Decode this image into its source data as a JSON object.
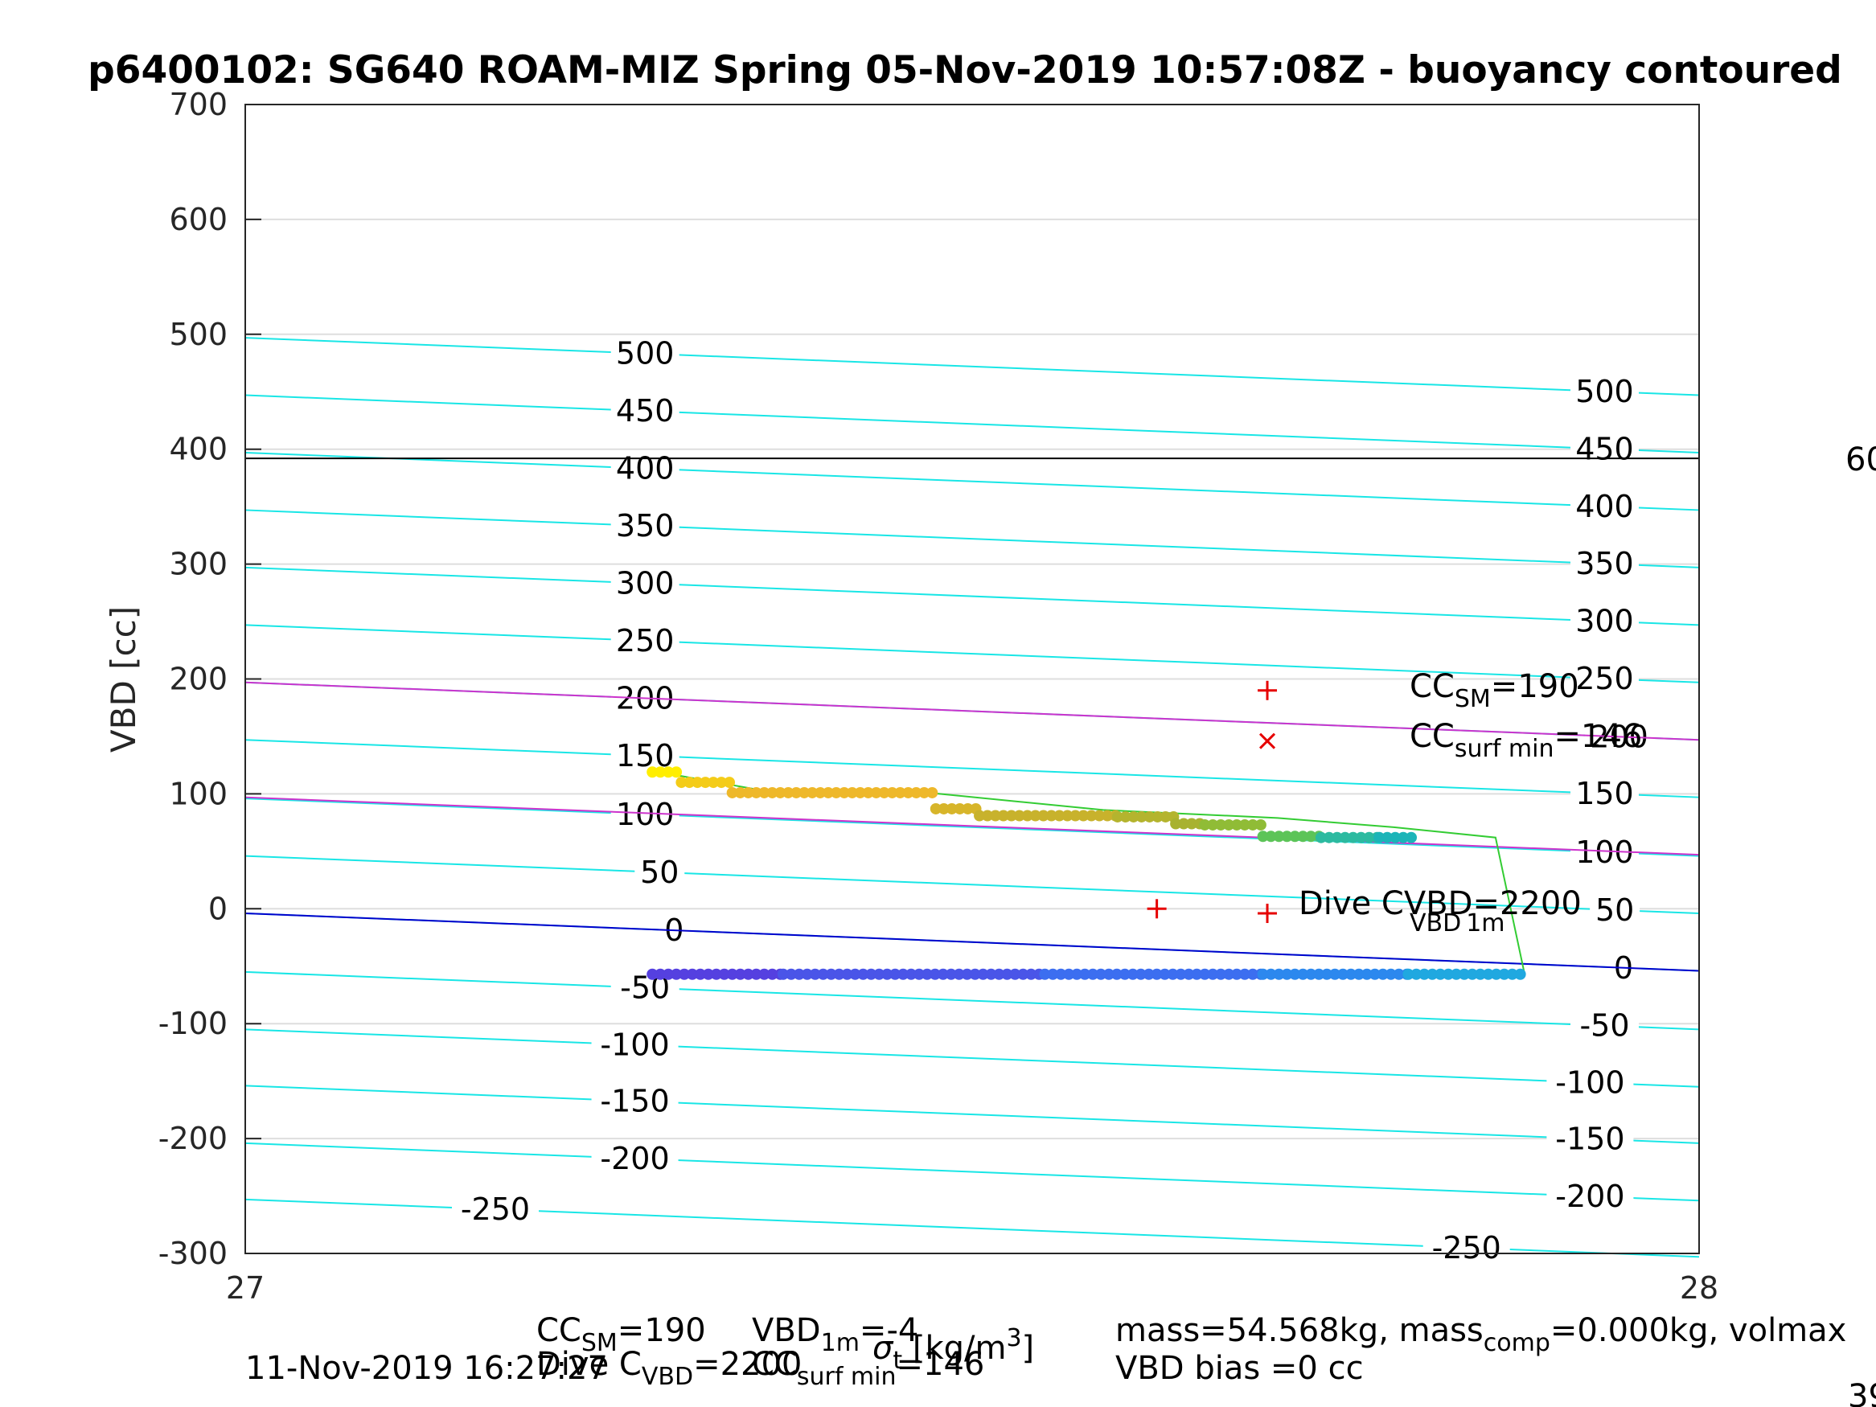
{
  "chart_data": {
    "type": "scatter",
    "title": "p6400102: SG640 ROAM-MIZ Spring 05-Nov-2019 10:57:08Z - buoyancy contoured",
    "ylabel": "VBD [cc]",
    "xlabel_parts": [
      "σ",
      "t",
      " [kg/m",
      "3",
      "]"
    ],
    "xlim": [
      27,
      28
    ],
    "ylim": [
      -300,
      700
    ],
    "x_ticks": [
      "27",
      "28"
    ],
    "y_ticks": [
      "-300",
      "-200",
      "-100",
      "0",
      "100",
      "200",
      "300",
      "400",
      "500",
      "600",
      "700"
    ],
    "grid": true,
    "contours": {
      "levels": [
        -250,
        -200,
        -150,
        -100,
        -50,
        0,
        50,
        100,
        150,
        200,
        250,
        300,
        350,
        400,
        450,
        500
      ],
      "y_at_left": [
        -253,
        -204,
        -154,
        -105,
        -55,
        -4,
        46,
        96,
        147,
        197,
        247,
        297,
        347,
        397,
        447,
        497
      ],
      "slope_per_unit_x": -50,
      "left_labels": [
        {
          "text": "500",
          "x": 27.275,
          "level": 500
        },
        {
          "text": "450",
          "x": 27.275,
          "level": 450
        },
        {
          "text": "400",
          "x": 27.275,
          "level": 400
        },
        {
          "text": "350",
          "x": 27.275,
          "level": 350
        },
        {
          "text": "300",
          "x": 27.275,
          "level": 300
        },
        {
          "text": "250",
          "x": 27.275,
          "level": 250
        },
        {
          "text": "200",
          "x": 27.275,
          "level": 200
        },
        {
          "text": "150",
          "x": 27.275,
          "level": 150
        },
        {
          "text": "100",
          "x": 27.275,
          "level": 100
        },
        {
          "text": "50",
          "x": 27.285,
          "level": 50
        },
        {
          "text": "0",
          "x": 27.295,
          "level": 0
        },
        {
          "text": "-50",
          "x": 27.275,
          "level": -50
        },
        {
          "text": "-100",
          "x": 27.268,
          "level": -100
        },
        {
          "text": "-150",
          "x": 27.268,
          "level": -150
        },
        {
          "text": "-200",
          "x": 27.268,
          "level": -200
        },
        {
          "text": "-250",
          "x": 27.172,
          "level": -250
        }
      ],
      "right_labels": [
        {
          "text": "500",
          "x": 27.935,
          "level": 500
        },
        {
          "text": "450",
          "x": 27.935,
          "level": 450
        },
        {
          "text": "400",
          "x": 27.935,
          "level": 400
        },
        {
          "text": "350",
          "x": 27.935,
          "level": 350
        },
        {
          "text": "300",
          "x": 27.935,
          "level": 300
        },
        {
          "text": "250",
          "x": 27.935,
          "level": 250
        },
        {
          "text": "200",
          "x": 27.945,
          "level": 200
        },
        {
          "text": "150",
          "x": 27.935,
          "level": 150
        },
        {
          "text": "100",
          "x": 27.935,
          "level": 100
        },
        {
          "text": "50",
          "x": 27.942,
          "level": 50
        },
        {
          "text": "0",
          "x": 27.948,
          "level": 0
        },
        {
          "text": "-50",
          "x": 27.935,
          "level": -50
        },
        {
          "text": "-100",
          "x": 27.925,
          "level": -100
        },
        {
          "text": "-150",
          "x": 27.925,
          "level": -150
        },
        {
          "text": "-200",
          "x": 27.925,
          "level": -200
        },
        {
          "text": "-250",
          "x": 27.84,
          "level": -250
        }
      ]
    },
    "reference_lines": [
      {
        "name": "VBD_1m",
        "color": "#0000cc",
        "y0": -4,
        "y1": -54
      },
      {
        "name": "CC_surf_min",
        "color": "#cc33cc",
        "y0": 97,
        "y1": 47
      },
      {
        "name": "CC_SM",
        "color": "#cc33cc",
        "y0": 197,
        "y1": 147
      },
      {
        "name": "volmax",
        "color": "#000000",
        "y0": 392,
        "y1": 392
      }
    ],
    "dive_segment": {
      "color": "#33cc33",
      "points": [
        [
          27.28,
          120
        ],
        [
          27.36,
          102
        ],
        [
          27.47,
          101
        ],
        [
          27.59,
          86
        ],
        [
          27.71,
          79
        ],
        [
          27.79,
          71
        ],
        [
          27.86,
          62
        ],
        [
          27.88,
          -57
        ],
        [
          27.28,
          -57
        ]
      ]
    },
    "climb_points": [
      {
        "from": 27.28,
        "to": 27.3,
        "y": 119,
        "color": "#ffee00"
      },
      {
        "from": 27.3,
        "to": 27.335,
        "y": 110,
        "color": "#f4cc18"
      },
      {
        "from": 27.335,
        "to": 27.475,
        "y": 101,
        "color": "#eeb82a"
      },
      {
        "from": 27.475,
        "to": 27.505,
        "y": 87,
        "color": "#d7b52a"
      },
      {
        "from": 27.505,
        "to": 27.6,
        "y": 81,
        "color": "#c8b22c"
      },
      {
        "from": 27.6,
        "to": 27.64,
        "y": 80,
        "color": "#b4b42e"
      },
      {
        "from": 27.64,
        "to": 27.66,
        "y": 74,
        "color": "#a8b230"
      },
      {
        "from": 27.66,
        "to": 27.7,
        "y": 73,
        "color": "#90bc36"
      },
      {
        "from": 27.7,
        "to": 27.74,
        "y": 63,
        "color": "#5cc458"
      },
      {
        "from": 27.74,
        "to": 27.78,
        "y": 62,
        "color": "#2cbaa0"
      },
      {
        "from": 27.78,
        "to": 27.805,
        "y": 62,
        "color": "#1cb4b8"
      }
    ],
    "dive_points": [
      {
        "from": 27.28,
        "to": 27.37,
        "y": -57,
        "color": "#5540e0"
      },
      {
        "from": 27.37,
        "to": 27.55,
        "y": -57,
        "color": "#4a55e8"
      },
      {
        "from": 27.55,
        "to": 27.7,
        "y": -57,
        "color": "#3c6ef0"
      },
      {
        "from": 27.7,
        "to": 27.8,
        "y": -57,
        "color": "#2c88ee"
      },
      {
        "from": 27.8,
        "to": 27.88,
        "y": -57,
        "color": "#20a8e0"
      }
    ],
    "markers": [
      {
        "symbol": "+",
        "x": 27.703,
        "y": 190,
        "color": "#e60000"
      },
      {
        "symbol": "x",
        "x": 27.703,
        "y": 146,
        "color": "#e60000"
      },
      {
        "symbol": "+",
        "x": 27.627,
        "y": 0,
        "color": "#e60000"
      },
      {
        "symbol": "+",
        "x": 27.703,
        "y": -4,
        "color": "#e60000"
      }
    ],
    "annotations": {
      "cc_sm": {
        "base": "CC",
        "sub": "SM",
        "rest": "=190"
      },
      "cc_surf_min": {
        "base": "CC",
        "sub": "surf min",
        "rest": "=146"
      },
      "dive_c_vbd": "Dive C",
      "dive_c_vbd_sub": "VBD",
      "dive_c_vbd_rest": "=2200",
      "vbd_1m": {
        "base": "VBD",
        "sub": "1m",
        "rest": "=-4"
      },
      "right_edge_top": "60",
      "right_edge_bottom": "39"
    },
    "footer": {
      "date": "11-Nov-2019 16:27:27",
      "cc_sm": "CC",
      "cc_sm_sub": "SM",
      "cc_sm_rest": "=190",
      "vbd1m": "VBD",
      "vbd1m_sub": "1m",
      "vbd1m_rest": "=-4",
      "dive_c": "Dive C",
      "dive_c_sub": "VBD",
      "dive_c_rest": "=2200",
      "cc_surf": "CC",
      "cc_surf_sub": "surf min",
      "cc_surf_rest": "=146",
      "mass": "mass=54.568kg, mass",
      "mass_sub": "comp",
      "mass_rest": "=0.000kg, volmax",
      "vbd_bias": "VBD bias =0 cc"
    }
  }
}
